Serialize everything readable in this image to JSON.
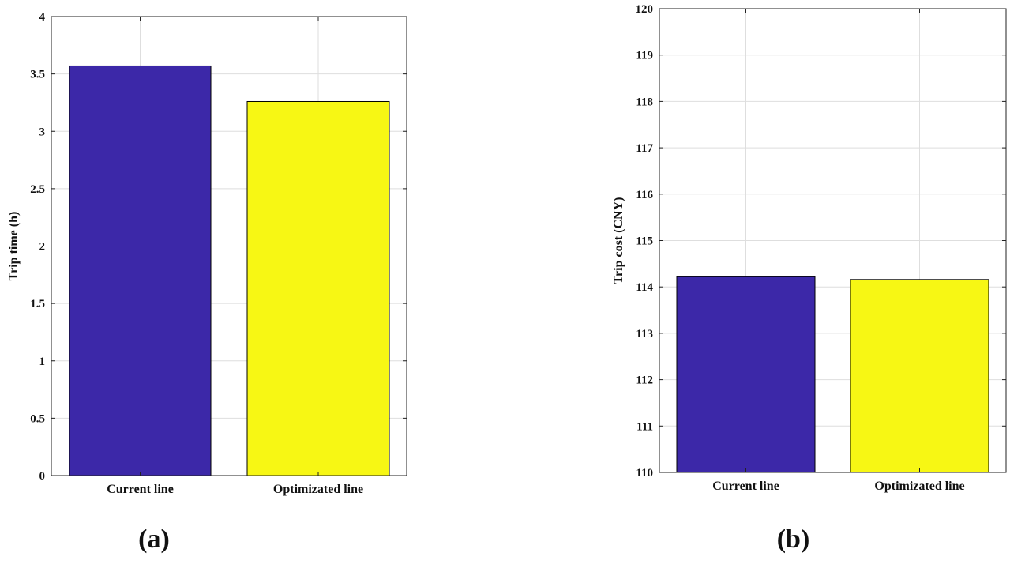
{
  "chart_data": [
    {
      "type": "bar",
      "categories": [
        "Current line",
        "Optimizated line"
      ],
      "values": [
        3.57,
        3.26
      ],
      "colors": [
        "#3c28a8",
        "#f7f714"
      ],
      "xlabel": "",
      "ylabel": "Trip time (h)",
      "ylim": [
        0,
        4
      ],
      "yticks": [
        "0",
        "0.5",
        "1",
        "1.5",
        "2",
        "2.5",
        "3",
        "3.5",
        "4"
      ],
      "grid": true,
      "panel_label": "(a)"
    },
    {
      "type": "bar",
      "categories": [
        "Current line",
        "Optimizated line"
      ],
      "values": [
        114.22,
        114.16
      ],
      "colors": [
        "#3c28a8",
        "#f7f714"
      ],
      "xlabel": "",
      "ylabel": "Trip cost (CNY)",
      "ylim": [
        110,
        120
      ],
      "yticks": [
        "110",
        "111",
        "112",
        "113",
        "114",
        "115",
        "116",
        "117",
        "118",
        "119",
        "120"
      ],
      "grid": true,
      "panel_label": "(b)"
    }
  ]
}
